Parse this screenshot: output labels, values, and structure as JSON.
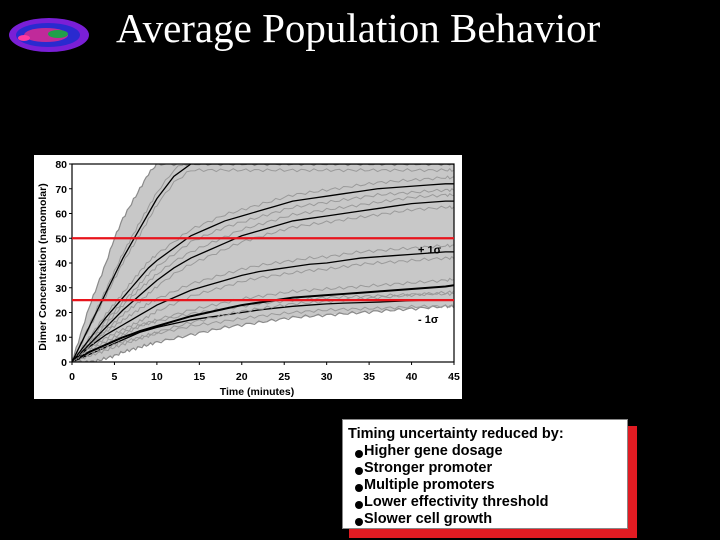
{
  "slide": {
    "title": "Average Population Behavior",
    "logo_icon": "cell-micrograph-icon"
  },
  "info_box": {
    "heading": "Timing uncertainty reduced by:",
    "items": [
      "Higher gene dosage",
      "Stronger promoter",
      "Multiple promoters",
      "Lower effectivity threshold",
      "Slower cell growth"
    ],
    "shadow_color": "#e11b22"
  },
  "chart_data": {
    "type": "line",
    "xlabel": "Time (minutes)",
    "ylabel": "Dimer Concentration (nanomolar)",
    "xlim": [
      0,
      45
    ],
    "ylim": [
      0,
      80
    ],
    "x_ticks": [
      0,
      5,
      10,
      15,
      20,
      25,
      30,
      35,
      40,
      45
    ],
    "y_ticks": [
      0,
      10,
      20,
      30,
      40,
      50,
      60,
      70,
      80
    ],
    "grid": false,
    "colors": {
      "band": "#c8c8c8",
      "sigma_band_line": "#8a8a8a",
      "mean_line": "#000000",
      "reference_line": "#e8141c"
    },
    "x": [
      0,
      1,
      2,
      3,
      4,
      5,
      6,
      7,
      8,
      9,
      10,
      12,
      14,
      16,
      18,
      20,
      22,
      24,
      26,
      28,
      30,
      32,
      34,
      36,
      38,
      40,
      42,
      44,
      45
    ],
    "series": [
      {
        "values": [
          0,
          1.5,
          3,
          4.5,
          6,
          7.5,
          9,
          10.5,
          12,
          13,
          14,
          15.5,
          17,
          18,
          19,
          20,
          21,
          21.8,
          22.5,
          23,
          23.5,
          23.8,
          24,
          24.2,
          24.5,
          24.8,
          25,
          25,
          25
        ]
      },
      {
        "values": [
          0,
          2,
          4,
          5.5,
          7,
          8.5,
          10,
          11.2,
          12.5,
          13.5,
          14.5,
          16.5,
          18.5,
          20,
          21.5,
          23,
          24,
          25,
          26,
          26.5,
          27,
          27.5,
          28,
          28.5,
          29,
          29.5,
          30,
          30.5,
          31
        ]
      },
      {
        "values": [
          0,
          3,
          6,
          8.5,
          11,
          13,
          15,
          17,
          19,
          21,
          23,
          26,
          29,
          31,
          33,
          35,
          36.5,
          37.5,
          38.5,
          39.5,
          40,
          41,
          42,
          42.5,
          43,
          43.5,
          44,
          44.5,
          44.5
        ]
      },
      {
        "values": [
          0,
          3.5,
          7,
          10.5,
          14,
          17.5,
          21,
          24,
          27,
          30,
          33,
          38,
          42,
          45,
          48,
          51,
          53,
          55,
          57,
          58,
          59,
          60,
          61,
          62,
          63,
          64,
          64.5,
          65,
          65
        ]
      },
      {
        "values": [
          0,
          4.5,
          9,
          13.5,
          18,
          22,
          26,
          30,
          34,
          38,
          41,
          46,
          51,
          54,
          57,
          59,
          61,
          63,
          65,
          66,
          67,
          68,
          69,
          70,
          70.5,
          71,
          71.5,
          72,
          72
        ]
      },
      {
        "values": [
          0,
          7,
          14,
          21,
          28,
          35,
          42,
          48,
          54,
          60,
          66,
          75,
          80,
          80,
          80,
          80,
          80,
          80,
          80,
          80,
          80,
          80,
          80,
          80,
          80,
          80,
          80,
          80,
          80
        ]
      }
    ],
    "band_upper": [
      0,
      11,
      22,
      31,
      40,
      50,
      58,
      64,
      70,
      76,
      80,
      80,
      80,
      80,
      80,
      80,
      80,
      80,
      80,
      80,
      80,
      80,
      80,
      80,
      80,
      80,
      80,
      80,
      80
    ],
    "band_lower": [
      0,
      0,
      0,
      0.5,
      1.5,
      2.5,
      4,
      5,
      6,
      7,
      8,
      9.5,
      11,
      12.5,
      14,
      15,
      16,
      17,
      18,
      18.5,
      19,
      19.5,
      20,
      20.5,
      21,
      21.5,
      22,
      22.5,
      22.5
    ],
    "reference_lines": [
      {
        "y": 50,
        "label": "+ 1σ"
      },
      {
        "y": 25,
        "label": "- 1σ"
      }
    ]
  }
}
